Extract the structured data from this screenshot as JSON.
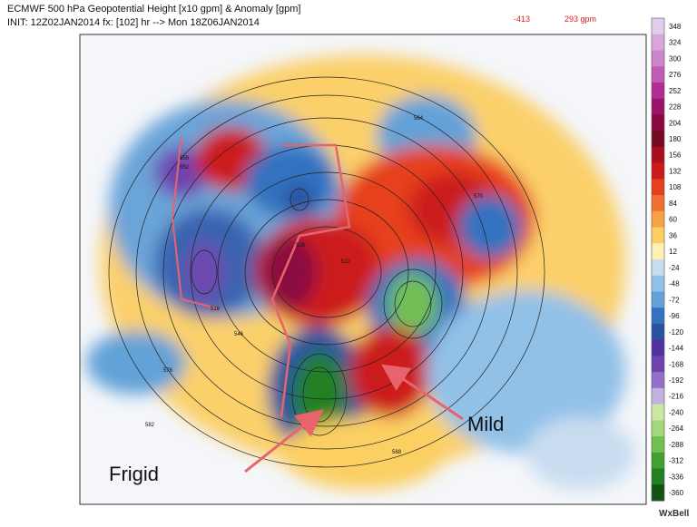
{
  "header": {
    "line1": "ECMWF 500 hPa Geopotential Height [x10 gpm] & Anomaly [gpm]",
    "line2": "INIT: 12Z02JAN2014  fx: [102] hr --> Mon 18Z06JAN2014",
    "min": "-413",
    "max": "293 gpm"
  },
  "colorbar": [
    {
      "label": 348,
      "color": "#e4cdea"
    },
    {
      "label": 324,
      "color": "#d9a6da"
    },
    {
      "label": 300,
      "color": "#cc84cb"
    },
    {
      "label": 276,
      "color": "#c25bb4"
    },
    {
      "label": 252,
      "color": "#b32d92"
    },
    {
      "label": 228,
      "color": "#9c1268"
    },
    {
      "label": 204,
      "color": "#8a0840"
    },
    {
      "label": 180,
      "color": "#760a22"
    },
    {
      "label": 156,
      "color": "#a8101e"
    },
    {
      "label": 132,
      "color": "#cc1a1a"
    },
    {
      "label": 108,
      "color": "#e6401e"
    },
    {
      "label": 84,
      "color": "#f07030"
    },
    {
      "label": 60,
      "color": "#f7a142"
    },
    {
      "label": 36,
      "color": "#fbcf62"
    },
    {
      "label": 12,
      "color": "#fdf2b4"
    },
    {
      "label": -24,
      "color": "#c9ddf0"
    },
    {
      "label": -48,
      "color": "#92c1e8"
    },
    {
      "label": -72,
      "color": "#62a2d8"
    },
    {
      "label": -96,
      "color": "#3272c0"
    },
    {
      "label": -120,
      "color": "#2a52a0"
    },
    {
      "label": -144,
      "color": "#4f32a0"
    },
    {
      "label": -168,
      "color": "#7042b0"
    },
    {
      "label": -192,
      "color": "#9272c8"
    },
    {
      "label": -216,
      "color": "#c2b2e0"
    },
    {
      "label": -240,
      "color": "#cbe8a2"
    },
    {
      "label": -264,
      "color": "#a2d87a"
    },
    {
      "label": -288,
      "color": "#72c052"
    },
    {
      "label": -312,
      "color": "#42a032"
    },
    {
      "label": -336,
      "color": "#228022"
    },
    {
      "label": -360,
      "color": "#125212"
    }
  ],
  "contour_labels": [
    "576",
    "582",
    "516",
    "522",
    "528",
    "546",
    "552",
    "558",
    "564",
    "570",
    "588"
  ],
  "annotations": {
    "frigid": "Frigid",
    "mild": "Mild"
  },
  "brand": "WxBell"
}
